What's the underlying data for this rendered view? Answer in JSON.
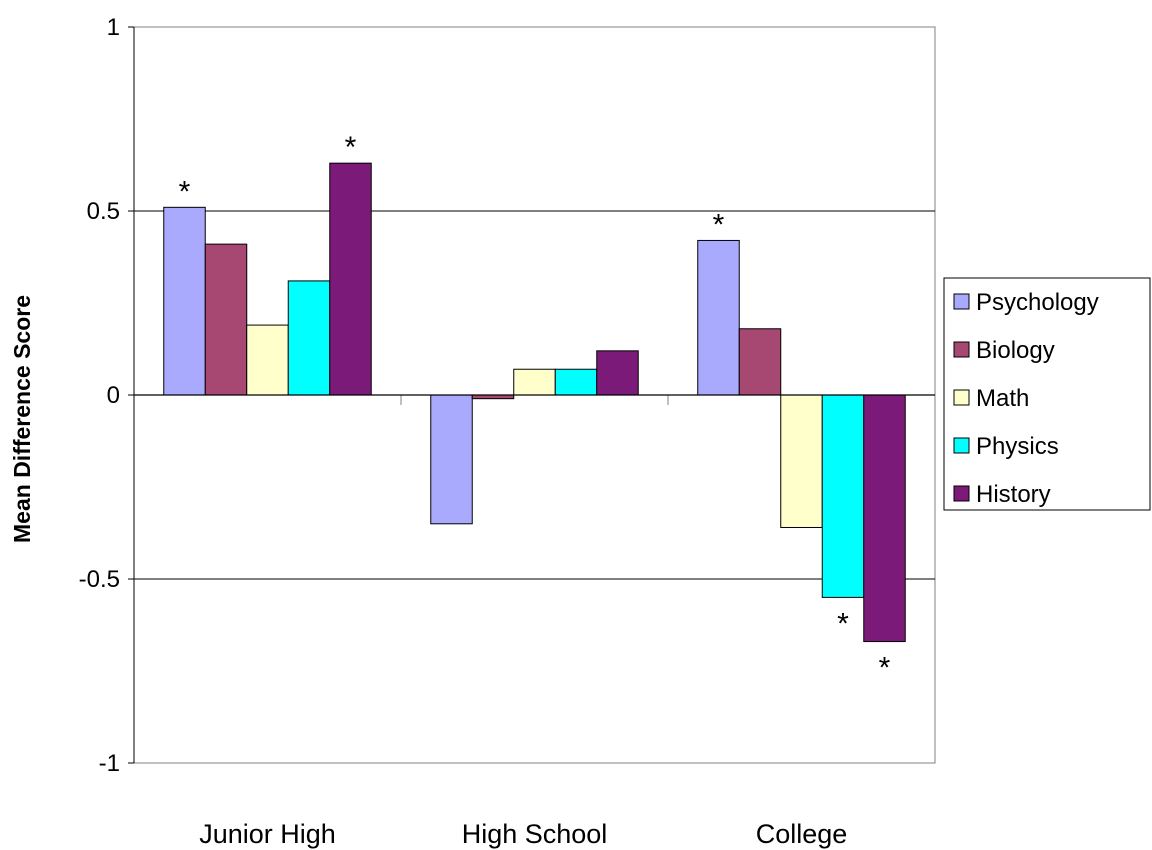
{
  "chart_data": {
    "type": "bar",
    "title": "",
    "xlabel": "",
    "ylabel": "Mean Difference Score",
    "ylim": [
      -1,
      1
    ],
    "yticks": [
      1,
      0.5,
      0,
      -0.5,
      -1
    ],
    "ytick_labels": [
      "1",
      "0.5",
      "0",
      "-0.5",
      "-1"
    ],
    "grid": "horizontal at 0.5, 0, -0.5",
    "legend_position": "right",
    "categories": [
      "Junior High",
      "High School",
      "College"
    ],
    "series": [
      {
        "name": "Psychology",
        "color": "#A9AAFE",
        "values": [
          0.51,
          -0.35,
          0.42
        ],
        "significant": [
          true,
          false,
          true
        ]
      },
      {
        "name": "Biology",
        "color": "#A64872",
        "values": [
          0.41,
          -0.01,
          0.18
        ],
        "significant": [
          false,
          false,
          false
        ]
      },
      {
        "name": "Math",
        "color": "#FFFFCC",
        "values": [
          0.19,
          0.07,
          -0.36
        ],
        "significant": [
          false,
          false,
          false
        ]
      },
      {
        "name": "Physics",
        "color": "#00FFFF",
        "values": [
          0.31,
          0.07,
          -0.55
        ],
        "significant": [
          false,
          false,
          true
        ]
      },
      {
        "name": "History",
        "color": "#7B1A78",
        "values": [
          0.63,
          0.12,
          -0.67
        ],
        "significant": [
          true,
          false,
          true
        ]
      }
    ],
    "significance_marker": "*"
  }
}
